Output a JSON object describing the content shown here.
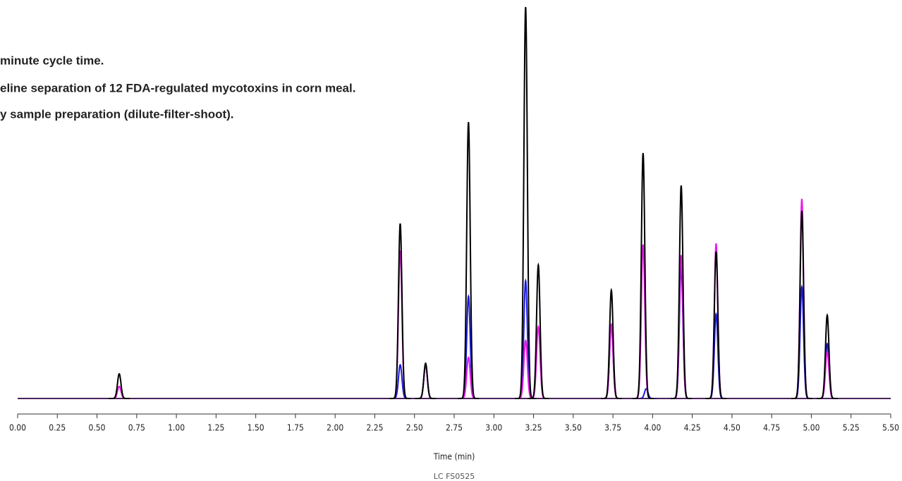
{
  "chart_data": {
    "type": "line",
    "notes": [
      "minute cycle time.",
      "eline separation of 12 FDA-regulated mycotoxins in corn meal.",
      "y sample preparation (dilute-filter-shoot)."
    ],
    "x_label": "Time (min)",
    "footnote": "LC  FS0525",
    "xlim": [
      0,
      5.5
    ],
    "ylim": [
      0,
      100
    ],
    "xticks": [
      {
        "value": 0,
        "label": "0.00"
      },
      {
        "value": 0.25,
        "label": "0.25"
      },
      {
        "value": 0.5,
        "label": "0.50"
      },
      {
        "value": 0.75,
        "label": "0.75"
      },
      {
        "value": 1,
        "label": "1.00"
      },
      {
        "value": 1.25,
        "label": "1.25"
      },
      {
        "value": 1.5,
        "label": "1.50"
      },
      {
        "value": 1.75,
        "label": "1.75"
      },
      {
        "value": 2,
        "label": "2.00"
      },
      {
        "value": 2.25,
        "label": "2.25"
      },
      {
        "value": 2.5,
        "label": "2.50"
      },
      {
        "value": 2.75,
        "label": "2.75"
      },
      {
        "value": 3,
        "label": "3.00"
      },
      {
        "value": 3.25,
        "label": "3.25"
      },
      {
        "value": 3.5,
        "label": "3.50"
      },
      {
        "value": 3.75,
        "label": "3.75"
      },
      {
        "value": 4,
        "label": "4.00"
      },
      {
        "value": 4.25,
        "label": "4.25"
      },
      {
        "value": 4.5,
        "label": "4.50"
      },
      {
        "value": 4.75,
        "label": "4.75"
      },
      {
        "value": 5,
        "label": "5.00"
      },
      {
        "value": 5.25,
        "label": "5.25"
      },
      {
        "value": 5.5,
        "label": "5.50"
      }
    ],
    "series": [
      {
        "color": "#1a1adc",
        "x": [
          2.41,
          2.57,
          2.84,
          3.2,
          3.74,
          3.96,
          4.18,
          4.4,
          4.94,
          5.1
        ],
        "values": [
          8.6,
          8.6,
          26.1,
          30.1,
          18.9,
          2.5,
          33.3,
          21.6,
          28.5,
          14
        ]
      },
      {
        "color": "#e619e6",
        "x": [
          0.64,
          2.41,
          2.57,
          2.84,
          3.2,
          3.28,
          3.74,
          3.94,
          4.18,
          4.4,
          4.94,
          5.1
        ],
        "values": [
          3.1,
          37.8,
          8.6,
          10.5,
          14.8,
          18.4,
          18.9,
          39.3,
          36.6,
          39.6,
          51,
          11.9
        ]
      },
      {
        "color": "#000000",
        "x": [
          0.64,
          2.41,
          2.57,
          2.84,
          3.2,
          3.28,
          3.74,
          3.94,
          4.18,
          4.4,
          4.94,
          5.1
        ],
        "values": [
          6.3,
          44.7,
          9,
          70.6,
          100,
          34.1,
          27.7,
          62.7,
          54.4,
          37.5,
          47.9,
          21.3
        ]
      }
    ]
  }
}
